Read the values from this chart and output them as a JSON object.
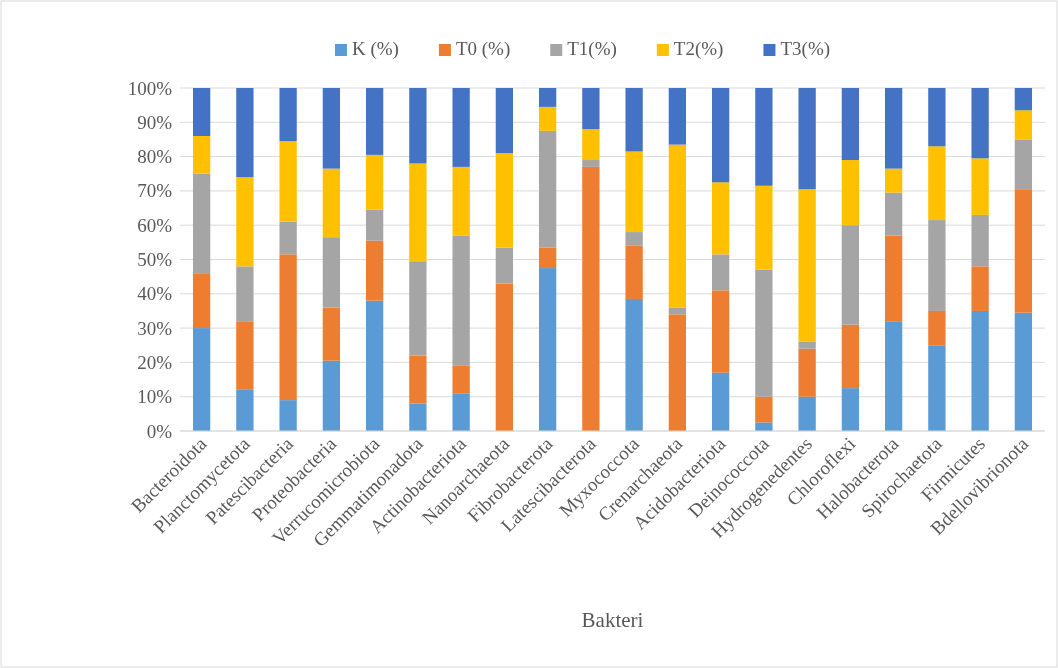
{
  "chart_data": {
    "type": "bar",
    "stacked": true,
    "xlabel": "Bakteri",
    "legend": "top",
    "categories": [
      "Bacteroidota",
      "Planctomycetota",
      "Patescibacteria",
      "Proteobacteria",
      "Verrucomicrobiota",
      "Gemmatimonadota",
      "Actinobacteriota",
      "Nanoarchaeota",
      "Fibrobacterota",
      "Latescibacterota",
      "Myxococcota",
      "Crenarchaeota",
      "Acidobacteriota",
      "Deinococcota",
      "Hydrogenedentes",
      "Chloroflexi",
      "Halobacterota",
      "Spirochaetota",
      "Firmicutes",
      "Bdellovibrionota"
    ],
    "ylim": [
      0,
      100
    ],
    "yticks": [
      {
        "value": 0,
        "label": "0%"
      },
      {
        "value": 10,
        "label": "10%"
      },
      {
        "value": 20,
        "label": "20%"
      },
      {
        "value": 30,
        "label": "30%"
      },
      {
        "value": 40,
        "label": "40%"
      },
      {
        "value": 50,
        "label": "50%"
      },
      {
        "value": 60,
        "label": "60%"
      },
      {
        "value": 70,
        "label": "70%"
      },
      {
        "value": 80,
        "label": "80%"
      },
      {
        "value": 90,
        "label": "90%"
      },
      {
        "value": 100,
        "label": "100%"
      }
    ],
    "grid": "y",
    "series": [
      {
        "name": "K (%)",
        "color": "#5b9bd5",
        "values": [
          30,
          12,
          9,
          20.5,
          38,
          8,
          11,
          0,
          47.5,
          0,
          38.5,
          0,
          17,
          2.5,
          10,
          12.5,
          32,
          25,
          35,
          34.5
        ]
      },
      {
        "name": "T0 (%)",
        "color": "#ed7d31",
        "values": [
          16,
          20,
          42.5,
          15.5,
          17.5,
          14,
          8,
          43,
          6,
          77,
          15.5,
          34,
          24,
          7.5,
          14,
          18.5,
          25,
          10,
          13,
          36
        ]
      },
      {
        "name": "T1(%)",
        "color": "#a5a5a5",
        "values": [
          29,
          16,
          9.5,
          20.5,
          9,
          27.5,
          38,
          10.5,
          34,
          2,
          4,
          2,
          10.5,
          37,
          2,
          29,
          12.5,
          26.5,
          15,
          14.5
        ]
      },
      {
        "name": "T2(%)",
        "color": "#ffc000",
        "values": [
          11,
          26,
          23.5,
          20,
          16,
          28.5,
          20,
          27.5,
          7,
          9,
          23.5,
          47.5,
          21,
          24.5,
          44.5,
          19,
          7,
          21.5,
          16.5,
          8.5
        ]
      },
      {
        "name": "T3(%)",
        "color": "#4472c4",
        "values": [
          14,
          26,
          15.5,
          23.5,
          19.5,
          22,
          23,
          19,
          5.5,
          12,
          18.5,
          16.5,
          27.5,
          28.5,
          29.5,
          21,
          23.5,
          17,
          20.5,
          6.5
        ]
      }
    ]
  }
}
